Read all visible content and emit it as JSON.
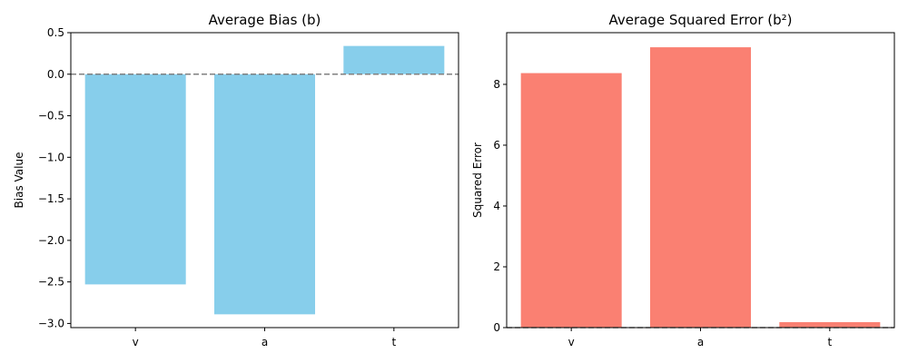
{
  "chart_data": [
    {
      "type": "bar",
      "title": "Average Bias (b)",
      "xlabel": "",
      "ylabel": "Bias Value",
      "categories": [
        "v",
        "a",
        "t"
      ],
      "values": [
        -2.53,
        -2.89,
        0.34
      ],
      "ylim": [
        -3.05,
        0.5
      ],
      "yticks": [
        0.5,
        0.0,
        -0.5,
        -1.0,
        -1.5,
        -2.0,
        -2.5,
        -3.0
      ],
      "ytick_labels": [
        "0.5",
        "0.0",
        "−0.5",
        "−1.0",
        "−1.5",
        "−2.0",
        "−2.5",
        "−3.0"
      ],
      "bar_color": "#87ceeb",
      "reference_line": 0,
      "reference_line_color": "#808080",
      "grid": false
    },
    {
      "type": "bar",
      "title": "Average Squared Error (b²)",
      "xlabel": "",
      "ylabel": "Squared Error",
      "categories": [
        "v",
        "a",
        "t"
      ],
      "values": [
        8.37,
        9.22,
        0.18
      ],
      "ylim": [
        0,
        9.7
      ],
      "yticks": [
        0,
        2,
        4,
        6,
        8
      ],
      "ytick_labels": [
        "0",
        "2",
        "4",
        "6",
        "8"
      ],
      "bar_color": "#fa8072",
      "reference_line": 0,
      "reference_line_color": "#808080",
      "grid": false
    }
  ]
}
